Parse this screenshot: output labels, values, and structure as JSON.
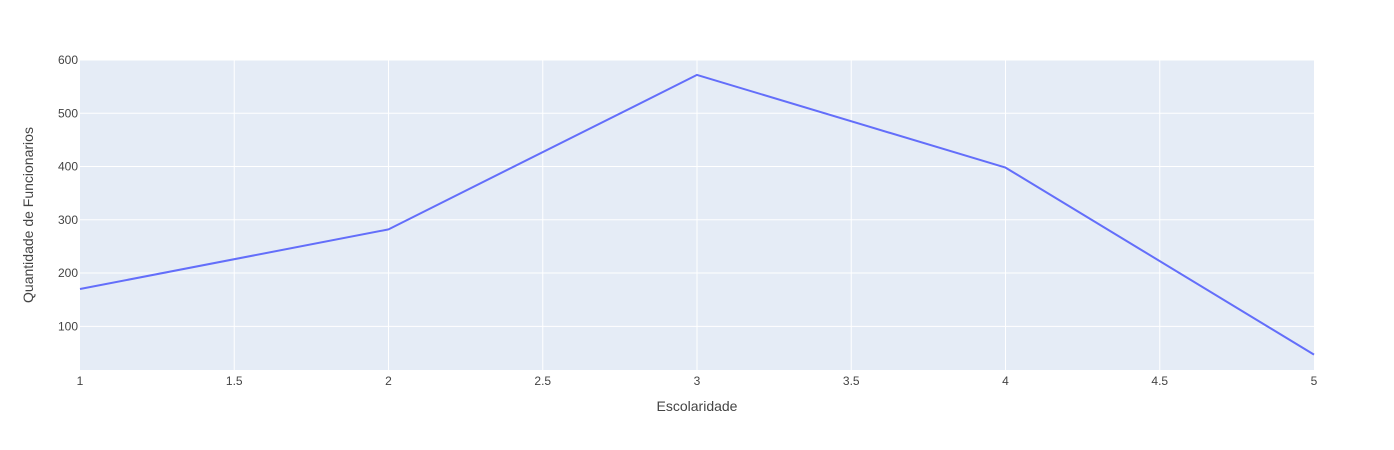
{
  "chart_data": {
    "type": "line",
    "title": "",
    "xlabel": "Escolaridade",
    "ylabel": "Quantidade de Funcionarios",
    "xlim": [
      1,
      5
    ],
    "ylim": [
      18,
      600
    ],
    "x_ticks": [
      "1",
      "1.5",
      "2",
      "2.5",
      "3",
      "3.5",
      "4",
      "4.5",
      "5"
    ],
    "y_ticks": [
      "100",
      "200",
      "300",
      "400",
      "500",
      "600"
    ],
    "grid": true,
    "legend": "none",
    "series": [
      {
        "x": [
          1,
          2,
          3,
          4,
          5
        ],
        "y": [
          170,
          282,
          572,
          398,
          47
        ]
      }
    ],
    "colors": {
      "line": "#636efa",
      "plot_background": "#e5ecf6",
      "grid": "#ffffff",
      "text": "#444444"
    }
  }
}
